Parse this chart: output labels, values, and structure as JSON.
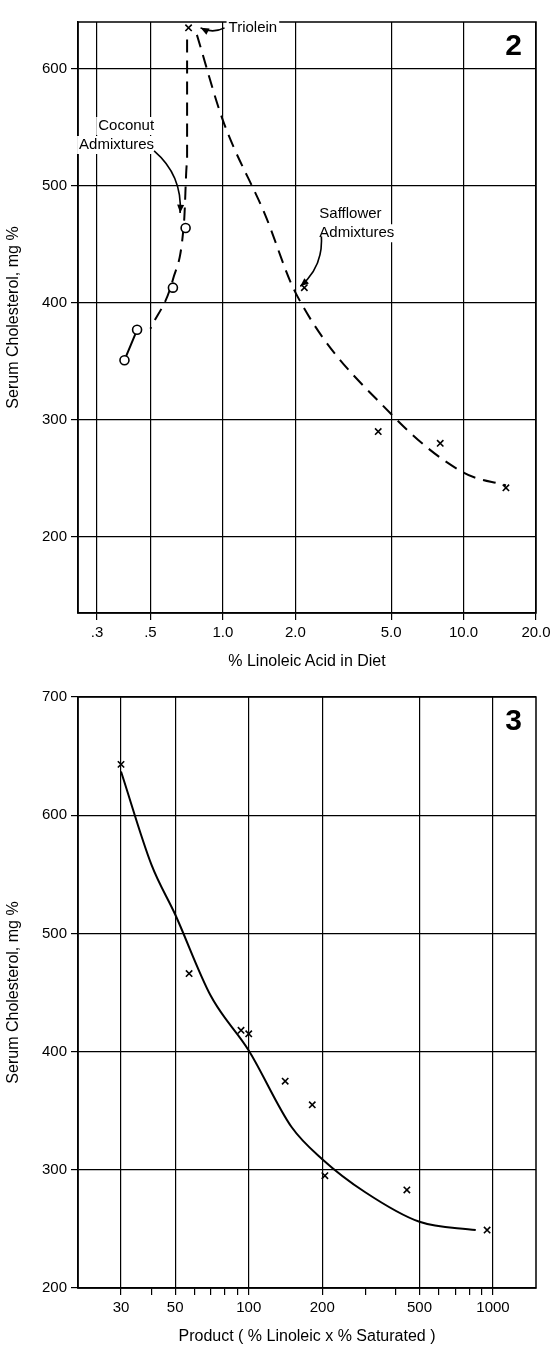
{
  "chart_data": [
    {
      "type": "scatter",
      "title": "2",
      "xlabel": "% Linoleic Acid in Diet",
      "ylabel": "Serum Cholesterol, mg %",
      "log": "x",
      "grid": true,
      "legend": false,
      "xlim": [
        0.25,
        20
      ],
      "xticks": [
        {
          "value": 0.3,
          "label": ".3"
        },
        {
          "value": 0.5,
          "label": ".5"
        },
        {
          "value": 1,
          "label": "1.0"
        },
        {
          "value": 2,
          "label": "2.0"
        },
        {
          "value": 5,
          "label": "5.0"
        },
        {
          "value": 10,
          "label": "10.0"
        },
        {
          "value": 20,
          "label": "20.0"
        }
      ],
      "ylim": [
        135,
        640
      ],
      "yticks": [
        200,
        300,
        400,
        500,
        600
      ],
      "series": [
        {
          "type": "scatter",
          "marker": "cross",
          "color": "#000000",
          "x": [
            2.18,
            4.42,
            8.0,
            15.0
          ],
          "values": [
            413,
            290,
            280,
            242
          ]
        },
        {
          "type": "scatter",
          "marker": "cross",
          "color": "#000000",
          "x": [
            0.72
          ],
          "values": [
            635
          ]
        },
        {
          "type": "scatter",
          "marker": "circle",
          "color": "#000000",
          "x": [
            0.7,
            0.62,
            0.44,
            0.39
          ],
          "values": [
            464,
            413,
            377,
            351
          ]
        },
        {
          "type": "line",
          "marker": "none",
          "line_style": "dashed",
          "color": "#000000",
          "x": [
            0.78,
            1.0,
            1.5,
            2.0,
            5.0,
            10.0,
            15.0
          ],
          "values": [
            629,
            556,
            475,
            409,
            305,
            255,
            244
          ]
        },
        {
          "type": "line",
          "marker": "none",
          "line_style": "dashed",
          "color": "#000000",
          "x": [
            0.71,
            0.71,
            0.69,
            0.62,
            0.5
          ],
          "values": [
            625,
            520,
            470,
            420,
            378
          ]
        },
        {
          "type": "line",
          "marker": "none",
          "line_style": "solid",
          "color": "#000000",
          "x": [
            0.44,
            0.39
          ],
          "values": [
            377,
            351
          ]
        }
      ],
      "annotations": [
        {
          "text": "Triolein",
          "x": 0.72,
          "y": 635
        },
        {
          "text": "Safflower\nAdmixtures",
          "x": 2.0,
          "y": 409
        },
        {
          "text": "Coconut\nAdmixtures",
          "x": 0.69,
          "y": 470
        }
      ]
    },
    {
      "type": "scatter",
      "title": "3",
      "xlabel": "Product ( % Linoleic x % Saturated )",
      "ylabel": "Serum Cholesterol, mg %",
      "log": "x",
      "grid": true,
      "legend": false,
      "xlim": [
        20,
        1500
      ],
      "xticks": [
        30,
        {
          "value": 40,
          "label": null
        },
        50,
        {
          "value": 60,
          "label": null
        },
        {
          "value": 70,
          "label": null
        },
        {
          "value": 80,
          "label": null
        },
        {
          "value": 90,
          "label": null
        },
        100,
        200,
        {
          "value": 300,
          "label": null
        },
        {
          "value": 400,
          "label": null
        },
        500,
        {
          "value": 600,
          "label": null
        },
        {
          "value": 700,
          "label": null
        },
        {
          "value": 800,
          "label": null
        },
        {
          "value": 900,
          "label": null
        },
        1000
      ],
      "ylim": [
        200,
        700
      ],
      "yticks": [
        200,
        300,
        400,
        500,
        600,
        700
      ],
      "series": [
        {
          "type": "scatter",
          "marker": "cross",
          "color": "#000000",
          "x": [
            30,
            57,
            93,
            100,
            141,
            182,
            205,
            444,
            946
          ],
          "values": [
            643,
            466,
            418,
            415,
            375,
            355,
            295,
            283,
            249
          ]
        },
        {
          "type": "line",
          "marker": "none",
          "line_style": "solid",
          "color": "#000000",
          "x": [
            30,
            40,
            50,
            70,
            100,
            150,
            200,
            300,
            500,
            850
          ],
          "values": [
            637,
            558,
            516,
            447,
            401,
            336,
            309,
            281,
            256,
            249
          ]
        }
      ]
    }
  ]
}
